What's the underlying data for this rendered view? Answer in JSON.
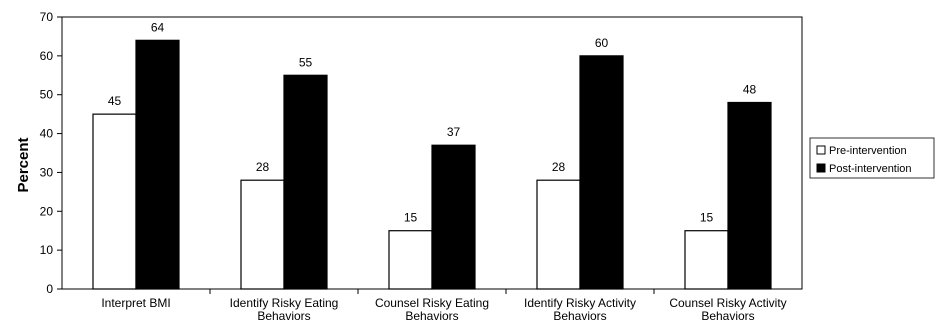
{
  "chart_data": {
    "type": "bar",
    "title": "",
    "xlabel": "",
    "ylabel": "Percent",
    "ylim": [
      0,
      70
    ],
    "yticks": [
      0,
      10,
      20,
      30,
      40,
      50,
      60,
      70
    ],
    "grid": false,
    "legend_position": "right",
    "categories": [
      [
        "Interpret BMI"
      ],
      [
        "Identify Risky Eating",
        "Behaviors"
      ],
      [
        "Counsel Risky Eating",
        "Behaviors"
      ],
      [
        "Identify Risky Activity",
        "Behaviors"
      ],
      [
        "Counsel Risky Activity",
        "Behaviors"
      ]
    ],
    "series": [
      {
        "name": "Pre-intervention",
        "color": "#ffffff",
        "values": [
          45,
          28,
          15,
          28,
          15
        ]
      },
      {
        "name": "Post-intervention",
        "color": "#000000",
        "values": [
          64,
          55,
          37,
          60,
          48
        ]
      }
    ]
  }
}
